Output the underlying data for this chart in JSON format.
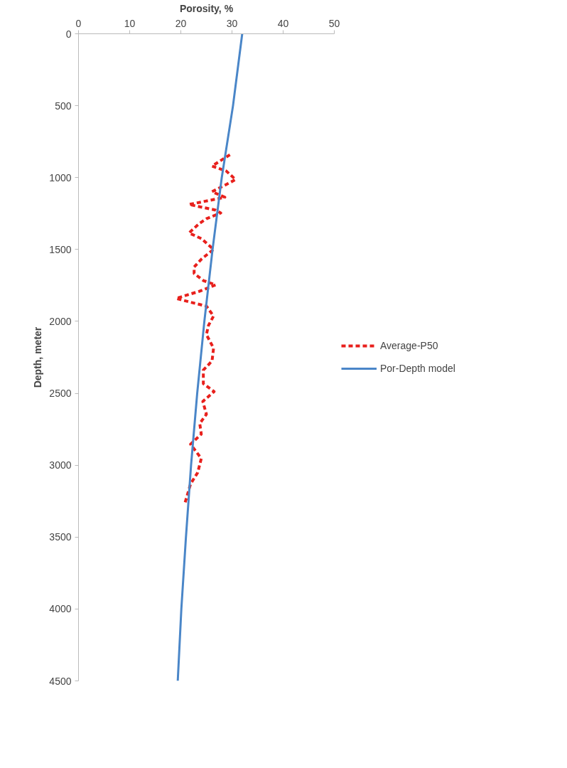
{
  "chart_data": {
    "type": "line",
    "xlabel": "Porosity, %",
    "ylabel": "Depth, meter",
    "xlim": [
      0,
      50
    ],
    "xticks": [
      0,
      10,
      20,
      30,
      40,
      50
    ],
    "ylim": [
      4500,
      0
    ],
    "yticks": [
      0,
      500,
      1000,
      1500,
      2000,
      2500,
      3000,
      3500,
      4000,
      4500
    ],
    "grid": false,
    "legend": "right",
    "marker": "none",
    "series": [
      {
        "name": "Average-P50",
        "color": "#e8201c",
        "line_style": "dashed",
        "x": [
          29.6,
          26.1,
          28.9,
          30.7,
          28.6,
          26.1,
          28.6,
          21.6,
          22.9,
          26.8,
          27.8,
          25.0,
          23.6,
          21.6,
          24.0,
          26.4,
          24.0,
          22.6,
          22.6,
          24.4,
          26.8,
          23.7,
          19.1,
          21.6,
          25.0,
          26.4,
          25.4,
          25.0,
          26.4,
          26.1,
          24.4,
          24.4,
          26.5,
          24.3,
          25.0,
          23.7,
          24.0,
          21.9,
          24.0,
          23.3,
          21.9,
          20.8
        ],
        "values": [
          841,
          920,
          955,
          1014,
          1053,
          1098,
          1137,
          1187,
          1197,
          1226,
          1246,
          1286,
          1320,
          1385,
          1424,
          1499,
          1568,
          1622,
          1667,
          1716,
          1746,
          1790,
          1840,
          1864,
          1894,
          1963,
          2028,
          2092,
          2186,
          2275,
          2339,
          2433,
          2488,
          2557,
          2646,
          2710,
          2784,
          2854,
          2953,
          3051,
          3131,
          3264
        ]
      },
      {
        "name": "Por-Depth model",
        "color": "#4a86c8",
        "line_style": "solid",
        "x": [
          32.0,
          30.2,
          28.0,
          26.2,
          24.6,
          23.2,
          22.0,
          21.0,
          20.1,
          19.4
        ],
        "values": [
          0,
          500,
          1000,
          1500,
          2000,
          2500,
          3000,
          3500,
          4000,
          4500
        ]
      }
    ]
  }
}
